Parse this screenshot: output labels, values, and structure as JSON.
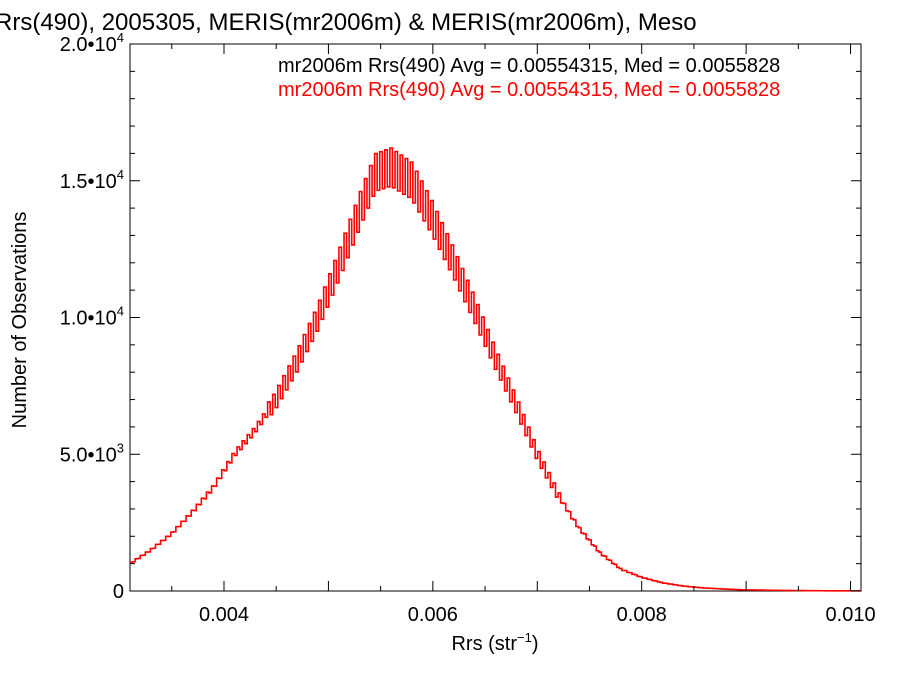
{
  "chart_data": {
    "type": "histogram",
    "title": "Rrs(490), 2005305, MERIS(mr2006m) & MERIS(mr2006m), Meso",
    "xlabel": "Rrs (str",
    "xlabel_sup": "−1",
    "xlabel_suffix": ")",
    "ylabel": "Number of Observations",
    "xlim": [
      0.0031,
      0.0101
    ],
    "ylim": [
      0,
      20000
    ],
    "x_ticks": [
      {
        "value": 0.004,
        "label": "0.004"
      },
      {
        "value": 0.006,
        "label": "0.006"
      },
      {
        "value": 0.008,
        "label": "0.008"
      },
      {
        "value": 0.01,
        "label": "0.010"
      }
    ],
    "y_ticks": [
      {
        "value": 0,
        "label": "0",
        "exp": ""
      },
      {
        "value": 5000,
        "label": "5.0•10",
        "exp": "3"
      },
      {
        "value": 10000,
        "label": "1.0•10",
        "exp": "4"
      },
      {
        "value": 15000,
        "label": "1.5•10",
        "exp": "4"
      },
      {
        "value": 20000,
        "label": "2.0•10",
        "exp": "4"
      }
    ],
    "legend": [
      {
        "text": "mr2006m Rrs(490) Avg = 0.00554315, Med = 0.0055828",
        "color": "#000000"
      },
      {
        "text": "mr2006m Rrs(490) Avg = 0.00554315, Med = 0.0055828",
        "color": "#ff0000"
      }
    ],
    "series_color": "#ff0000",
    "curve": {
      "x": [
        0.0031,
        0.0033,
        0.0035,
        0.0037,
        0.0039,
        0.0041,
        0.0043,
        0.0045,
        0.0047,
        0.0049,
        0.0051,
        0.0053,
        0.00545,
        0.0056,
        0.0058,
        0.006,
        0.0062,
        0.0064,
        0.0066,
        0.0068,
        0.007,
        0.0072,
        0.0074,
        0.0076,
        0.0078,
        0.008,
        0.0082,
        0.0084,
        0.0086,
        0.0088,
        0.009,
        0.0092,
        0.0094,
        0.0096,
        0.0098,
        0.01,
        0.0101
      ],
      "y": [
        1000,
        1500,
        2100,
        2900,
        3800,
        5000,
        5900,
        7000,
        8400,
        10000,
        11900,
        13900,
        15300,
        15500,
        15000,
        13600,
        12000,
        10300,
        8500,
        6800,
        5000,
        3500,
        2300,
        1400,
        800,
        500,
        300,
        180,
        110,
        70,
        40,
        30,
        20,
        12,
        8,
        5,
        5
      ]
    }
  }
}
